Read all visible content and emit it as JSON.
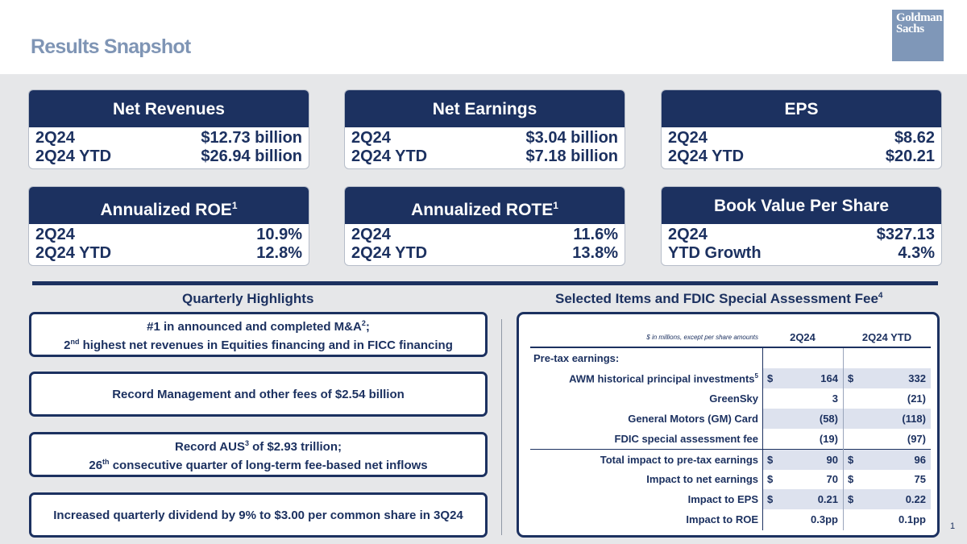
{
  "title": "Results Snapshot",
  "logo": {
    "line1": "Goldman",
    "line2": "Sachs"
  },
  "cards": [
    {
      "title": "Net Revenues",
      "sup": "",
      "rows": [
        {
          "label": "2Q24",
          "value": "$12.73 billion"
        },
        {
          "label": "2Q24 YTD",
          "value": "$26.94 billion"
        }
      ]
    },
    {
      "title": "Net Earnings",
      "sup": "",
      "rows": [
        {
          "label": "2Q24",
          "value": "$3.04 billion"
        },
        {
          "label": "2Q24 YTD",
          "value": "$7.18 billion"
        }
      ]
    },
    {
      "title": "EPS",
      "sup": "",
      "rows": [
        {
          "label": "2Q24",
          "value": "$8.62"
        },
        {
          "label": "2Q24 YTD",
          "value": "$20.21"
        }
      ]
    },
    {
      "title": "Annualized ROE",
      "sup": "1",
      "rows": [
        {
          "label": "2Q24",
          "value": "10.9%"
        },
        {
          "label": "2Q24 YTD",
          "value": "12.8%"
        }
      ]
    },
    {
      "title": "Annualized ROTE",
      "sup": "1",
      "rows": [
        {
          "label": "2Q24",
          "value": "11.6%"
        },
        {
          "label": "2Q24 YTD",
          "value": "13.8%"
        }
      ]
    },
    {
      "title": "Book Value Per Share",
      "sup": "",
      "rows": [
        {
          "label": "2Q24",
          "value": "$327.13"
        },
        {
          "label": "YTD Growth",
          "value": "4.3%"
        }
      ]
    }
  ],
  "highlights_title": "Quarterly Highlights",
  "selected_title": "Selected Items and FDIC Special Assessment Fee",
  "selected_title_sup": "4",
  "highlights": {
    "h1_line1_a": "#1 in announced and completed M&A",
    "h1_line1_sup": "2",
    "h1_line1_b": ";",
    "h1_line2_a": "2",
    "h1_line2_sup": "nd",
    "h1_line2_b": " highest net revenues in Equities financing and in FICC financing",
    "h2": "Record Management and other fees of $2.54 billion",
    "h3_line1_a": "Record AUS",
    "h3_line1_sup": "3",
    "h3_line1_b": " of $2.93 trillion;",
    "h3_line2_a": "26",
    "h3_line2_sup": "th",
    "h3_line2_b": " consecutive quarter of long-term fee-based net inflows",
    "h4": "Increased quarterly dividend by 9% to $3.00 per common share in 3Q24"
  },
  "table": {
    "note": "$ in millions, except per share amounts",
    "col1": "2Q24",
    "col2": "2Q24 YTD",
    "section": "Pre-tax earnings:",
    "rows": [
      {
        "label": "AWM historical principal investments",
        "sup": "5",
        "d1": "$",
        "v1": "164",
        "d2": "$",
        "v2": "332"
      },
      {
        "label": "GreenSky",
        "sup": "",
        "d1": "",
        "v1": "3",
        "d2": "",
        "v2": "(21)"
      },
      {
        "label": "General Motors (GM) Card",
        "sup": "",
        "d1": "",
        "v1": "(58)",
        "d2": "",
        "v2": "(118)"
      },
      {
        "label": "FDIC special assessment fee",
        "sup": "",
        "d1": "",
        "v1": "(19)",
        "d2": "",
        "v2": "(97)"
      },
      {
        "label": "Total impact to pre-tax earnings",
        "sup": "",
        "d1": "$",
        "v1": "90",
        "d2": "$",
        "v2": "96"
      },
      {
        "label": "Impact to net earnings",
        "sup": "",
        "d1": "$",
        "v1": "70",
        "d2": "$",
        "v2": "75"
      },
      {
        "label": "Impact to EPS",
        "sup": "",
        "d1": "$",
        "v1": "0.21",
        "d2": "$",
        "v2": "0.22"
      },
      {
        "label": "Impact to ROE",
        "sup": "",
        "d1": "",
        "v1": "0.3pp",
        "d2": "",
        "v2": "0.1pp"
      }
    ]
  },
  "page_number": "1"
}
